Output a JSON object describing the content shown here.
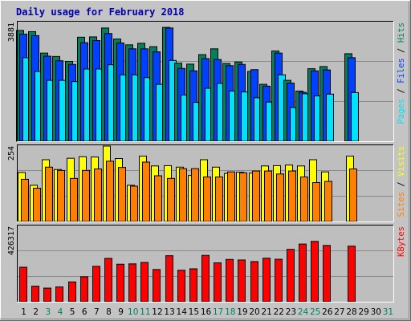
{
  "colors": {
    "background": "#c4c4c4",
    "plot_bg": "#bebebe",
    "hits": "#00805c",
    "files": "#0040ff",
    "pages": "#00e0ff",
    "visits": "#ffff00",
    "sites": "#ff8000",
    "kbytes": "#ff0000",
    "title": "#0000aa",
    "weekday_tick": "#000000",
    "weekend_tick": "#00805c"
  },
  "chart_data": {
    "type": "bar",
    "title": "Daily usage for February 2018",
    "x": {
      "labels": [
        "1",
        "2",
        "3",
        "4",
        "5",
        "6",
        "7",
        "8",
        "9",
        "10",
        "11",
        "12",
        "13",
        "14",
        "15",
        "16",
        "17",
        "18",
        "19",
        "20",
        "21",
        "22",
        "23",
        "24",
        "25",
        "26",
        "27",
        "28",
        "29",
        "30",
        "31"
      ],
      "weekend_days": [
        3,
        4,
        10,
        11,
        17,
        18,
        24,
        25,
        31
      ]
    },
    "legend_placement": "right",
    "panels": [
      {
        "name": "hits-files-pages",
        "ymax_label": "3881",
        "ylim": [
          0,
          3881
        ],
        "grid": true,
        "legend": [
          {
            "key": "pages",
            "text": "Pages"
          },
          {
            "key": "sep",
            "text": " / "
          },
          {
            "key": "files",
            "text": "Files"
          },
          {
            "key": "sep",
            "text": " / "
          },
          {
            "key": "hits",
            "text": "Hits"
          }
        ],
        "series": [
          {
            "name": "Hits",
            "color_key": "hits",
            "values": [
              3620,
              3580,
              2880,
              2770,
              2610,
              3400,
              3410,
              3700,
              3340,
              3150,
              3200,
              3090,
              3720,
              2550,
              2520,
              2830,
              3020,
              2540,
              2590,
              2280,
              1860,
              2950,
              1990,
              1640,
              2370,
              2440,
              0,
              2860,
              0,
              0,
              0
            ]
          },
          {
            "name": "Files",
            "color_key": "files",
            "values": [
              3500,
              3450,
              2780,
              2630,
              2510,
              3220,
              3290,
              3520,
              3210,
              3020,
              3020,
              2920,
              3700,
              2380,
              2300,
              2700,
              2670,
              2470,
              2510,
              2340,
              1800,
              2880,
              1900,
              1600,
              2300,
              2330,
              0,
              2730,
              0,
              0,
              0
            ]
          },
          {
            "name": "Pages",
            "color_key": "pages",
            "values": [
              2730,
              2280,
              1990,
              1990,
              1950,
              2360,
              2360,
              2500,
              2170,
              2170,
              2080,
              1860,
              2640,
              1510,
              1270,
              1730,
              1890,
              1640,
              1610,
              1420,
              1280,
              2170,
              1100,
              1550,
              1480,
              1540,
              0,
              1590,
              0,
              0,
              0
            ]
          }
        ]
      },
      {
        "name": "visits-sites",
        "ymax_label": "254",
        "ylim": [
          0,
          254
        ],
        "grid": true,
        "legend": [
          {
            "key": "sites",
            "text": "Sites"
          },
          {
            "key": "sep",
            "text": " / "
          },
          {
            "key": "visits",
            "text": "Visits"
          }
        ],
        "series": [
          {
            "name": "Visits",
            "color_key": "visits",
            "values": [
              165,
              122,
              208,
              175,
              213,
              218,
              217,
              254,
              212,
              122,
              220,
              187,
              188,
              183,
              155,
              208,
              183,
              162,
              166,
              163,
              187,
              188,
              190,
              187,
              208,
              167,
              0,
              220,
              0,
              0,
              0
            ]
          },
          {
            "name": "Sites",
            "color_key": "sites",
            "values": [
              142,
              112,
              183,
              172,
              145,
              172,
              177,
              203,
              182,
              119,
              200,
              154,
              145,
              178,
              178,
              150,
              150,
              167,
              164,
              170,
              170,
              160,
              170,
              150,
              131,
              135,
              0,
              177,
              0,
              0,
              0
            ]
          }
        ]
      },
      {
        "name": "kbytes",
        "ymax_label": "426317",
        "ylim": [
          0,
          426317
        ],
        "grid": true,
        "legend": [
          {
            "key": "kbytes",
            "text": "KBytes"
          }
        ],
        "series": [
          {
            "name": "KBytes",
            "color_key": "kbytes",
            "values": [
              195000,
              88000,
              77000,
              84000,
              112000,
              141000,
              200000,
              245000,
              212000,
              214000,
              222000,
              182000,
              260000,
              178000,
              186000,
              262000,
              220000,
              239000,
              236000,
              227000,
              246000,
              240000,
              296000,
              326000,
              341000,
              318000,
              0,
              314000,
              0,
              0,
              0
            ]
          }
        ]
      }
    ]
  }
}
